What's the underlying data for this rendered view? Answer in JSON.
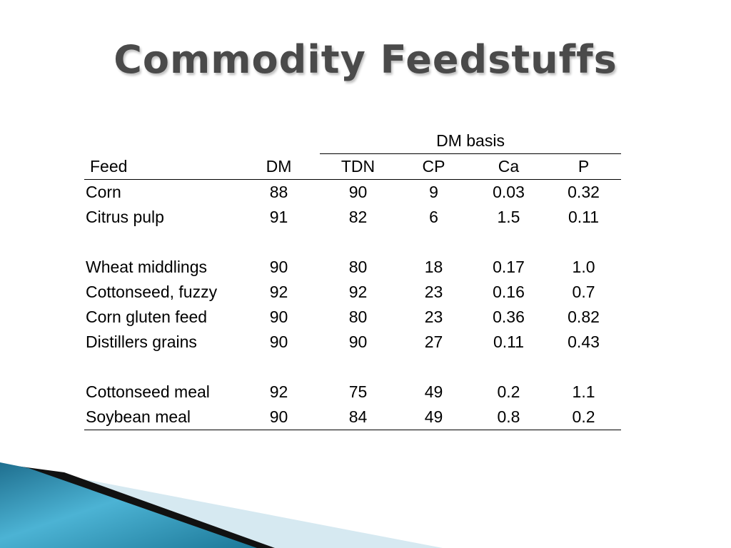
{
  "slide": {
    "title": "Commodity Feedstuffs"
  },
  "table": {
    "group_header": "DM basis",
    "columns": [
      "Feed",
      "DM",
      "TDN",
      "CP",
      "Ca",
      "P"
    ],
    "groups": [
      [
        [
          "Corn",
          "88",
          "90",
          "9",
          "0.03",
          "0.32"
        ],
        [
          "Citrus pulp",
          "91",
          "82",
          "6",
          "1.5",
          "0.11"
        ]
      ],
      [
        [
          "Wheat middlings",
          "90",
          "80",
          "18",
          "0.17",
          "1.0"
        ],
        [
          "Cottonseed, fuzzy",
          "92",
          "92",
          "23",
          "0.16",
          "0.7"
        ],
        [
          "Corn gluten feed",
          "90",
          "80",
          "23",
          "0.36",
          "0.82"
        ],
        [
          "Distillers grains",
          "90",
          "90",
          "27",
          "0.11",
          "0.43"
        ]
      ],
      [
        [
          "Cottonseed meal",
          "92",
          "75",
          "49",
          "0.2",
          "1.1"
        ],
        [
          "Soybean meal",
          "90",
          "84",
          "49",
          "0.8",
          "0.2"
        ]
      ]
    ]
  },
  "colors": {
    "title": "#4a4a4a",
    "accent_teal": "#2a8fae",
    "accent_light": "#d6e9f1",
    "accent_dark": "#111111"
  }
}
